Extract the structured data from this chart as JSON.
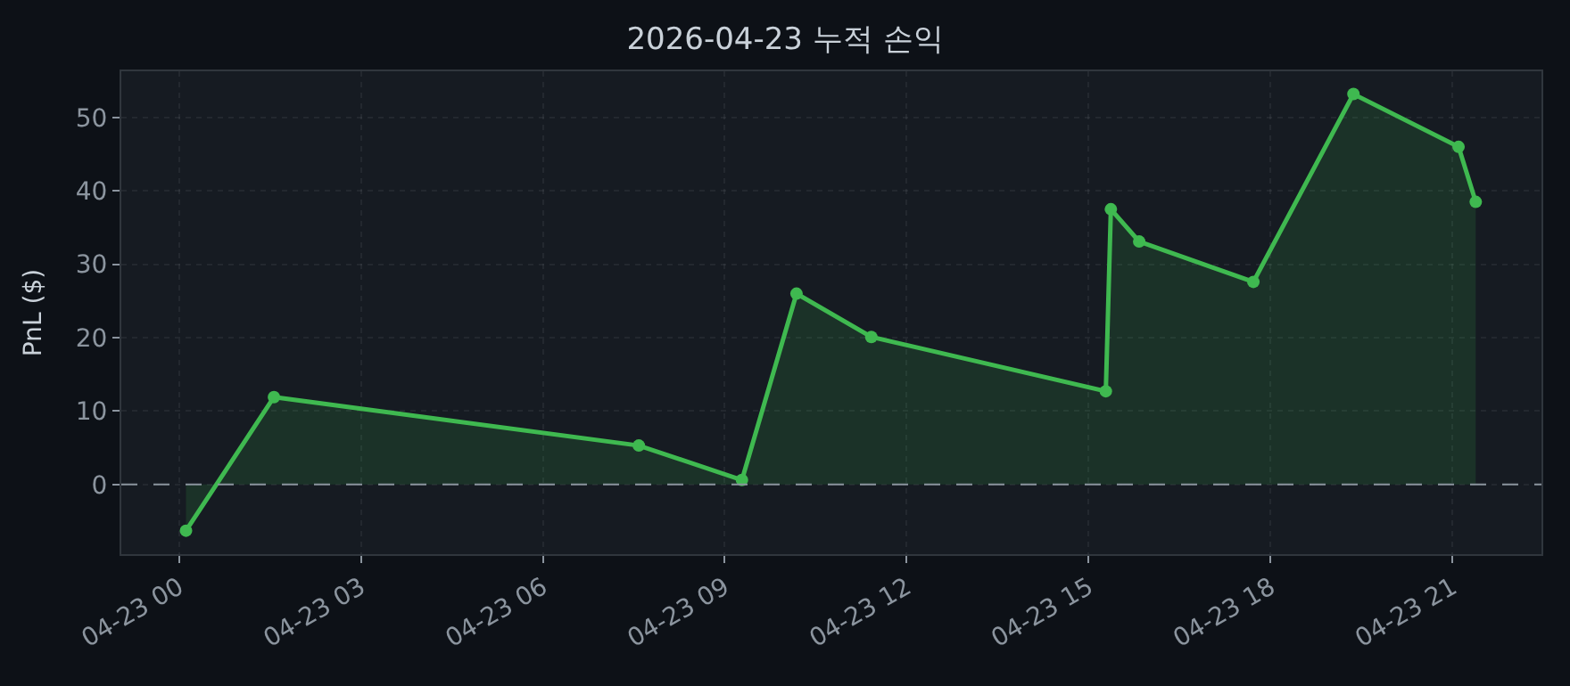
{
  "chart_data": {
    "type": "area",
    "title": "2026-04-23 누적 손익",
    "ylabel": "PnL ($)",
    "x": [
      "2026-04-23T00:07",
      "2026-04-23T01:34",
      "2026-04-23T07:35",
      "2026-04-23T09:17",
      "2026-04-23T10:11",
      "2026-04-23T11:25",
      "2026-04-23T15:17",
      "2026-04-23T15:22",
      "2026-04-23T15:50",
      "2026-04-23T17:43",
      "2026-04-23T19:22",
      "2026-04-23T21:06",
      "2026-04-23T21:23"
    ],
    "series": [
      {
        "color": "#3fb950",
        "values": [
          -6.3,
          11.9,
          5.3,
          0.6,
          26.0,
          20.1,
          12.7,
          37.5,
          33.1,
          27.6,
          53.2,
          46.0,
          38.5
        ]
      }
    ],
    "xlim": [
      "2026-04-22T23:03",
      "2026-04-23T22:28"
    ],
    "xticks": [
      {
        "value": "2026-04-23T00:00",
        "label": "04-23 00"
      },
      {
        "value": "2026-04-23T03:00",
        "label": "04-23 03"
      },
      {
        "value": "2026-04-23T06:00",
        "label": "04-23 06"
      },
      {
        "value": "2026-04-23T09:00",
        "label": "04-23 09"
      },
      {
        "value": "2026-04-23T12:00",
        "label": "04-23 12"
      },
      {
        "value": "2026-04-23T15:00",
        "label": "04-23 15"
      },
      {
        "value": "2026-04-23T18:00",
        "label": "04-23 18"
      },
      {
        "value": "2026-04-23T21:00",
        "label": "04-23 21"
      }
    ],
    "ylim": [
      -9.5,
      56.3
    ],
    "yticks": [
      0,
      10,
      20,
      30,
      40,
      50
    ],
    "ref_lines": [
      {
        "axis": "y",
        "value": 0,
        "color": "#8b949e",
        "line_style": "dashed"
      }
    ],
    "grid": true,
    "marker": "circle",
    "line_style": "solid"
  }
}
